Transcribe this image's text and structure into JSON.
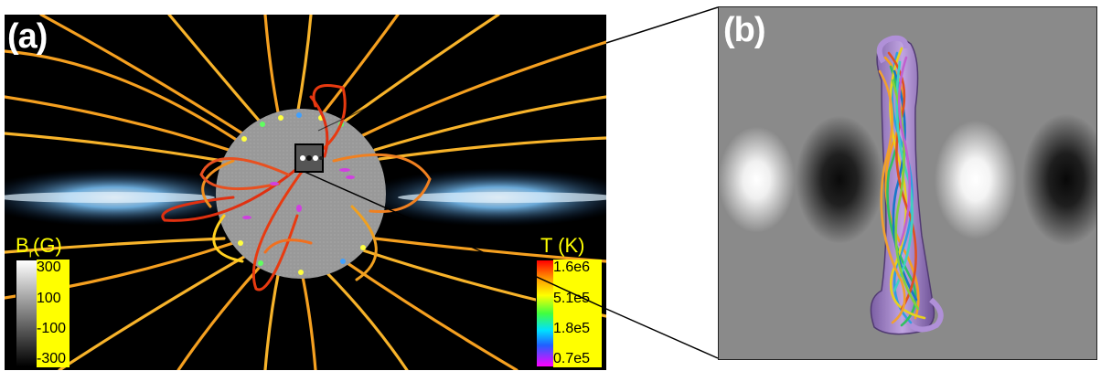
{
  "panel_a": {
    "label": "(a)",
    "br_legend": {
      "title_main": "B",
      "title_sub": "r",
      "title_unit": "(G)",
      "ticks": [
        "300",
        "100",
        "-100",
        "-300"
      ]
    },
    "temp_legend": {
      "title": "T (K)",
      "ticks": [
        "1.6e6",
        "5.1e5",
        "1.8e5",
        "0.7e5"
      ]
    }
  },
  "panel_b": {
    "label": "(b)"
  }
}
